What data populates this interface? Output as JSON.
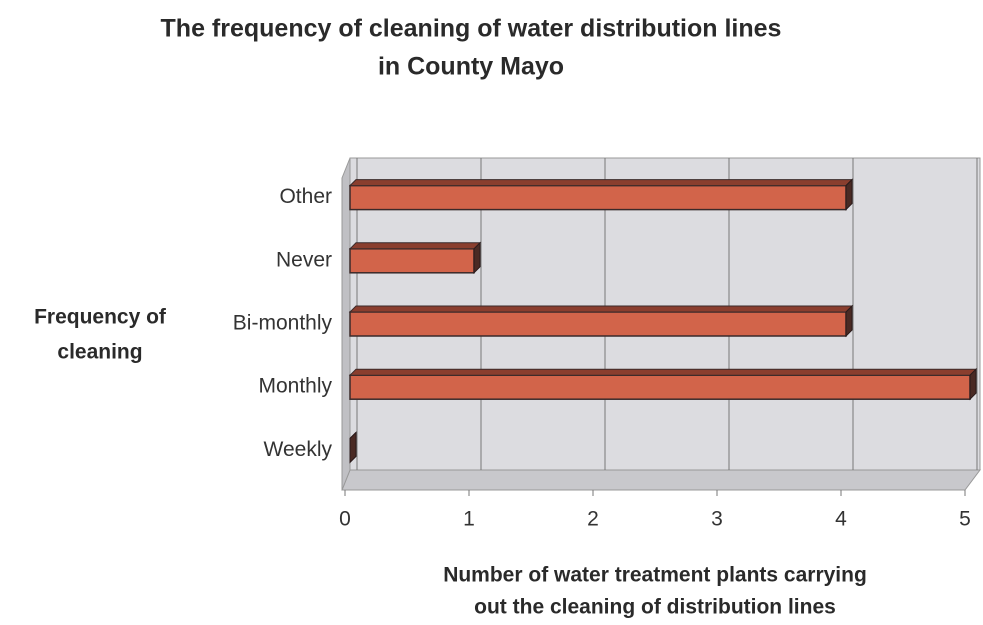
{
  "chart_data": {
    "type": "bar",
    "orientation": "horizontal",
    "title": [
      "The frequency of cleaning of water distribution lines",
      "in County Mayo"
    ],
    "y_label": [
      "Frequency of",
      "cleaning"
    ],
    "x_label": [
      "Number of water treatment plants carrying",
      "out the cleaning of distribution lines"
    ],
    "categories": [
      "Weekly",
      "Monthly",
      "Bi-monthly",
      "Never",
      "Other"
    ],
    "values": [
      0,
      5,
      4,
      1,
      4
    ],
    "color": "#d2644a",
    "xlim": [
      0,
      5
    ],
    "xticks": [
      0,
      1,
      2,
      3,
      4,
      5
    ],
    "grid": true
  }
}
